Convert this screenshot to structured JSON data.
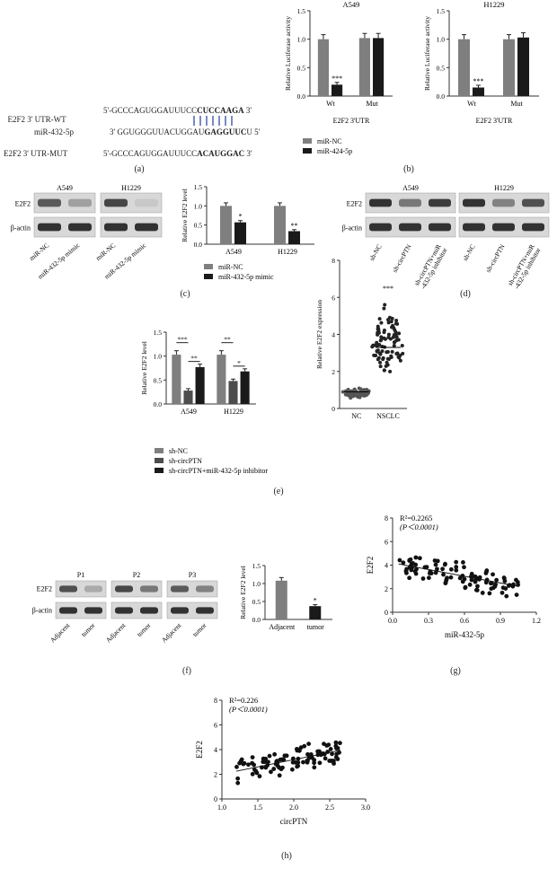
{
  "panel_labels": {
    "a": "(a)",
    "b": "(b)",
    "c": "(c)",
    "d": "(d)",
    "e": "(e)",
    "f": "(f)",
    "g": "(g)",
    "h": "(h)"
  },
  "panel_a": {
    "wt_label": "E2F2 3' UTR-WT",
    "wt_seq_prefix": "5'-GCCCAGUGGAUUUCC",
    "wt_seq_bold": "CUCCAAGA",
    "wt_seq_suffix": " 3'",
    "mir_label": "miR-432-5p",
    "mir_seq_prefix": "3' GGUGGGUUACUGGAU",
    "mir_seq_bold": "GAGGUUC",
    "mir_seq_suffix": "U 5'",
    "mut_label": "E2F2 3' UTR-MUT",
    "mut_seq_prefix": "5'-GCCCAGUGGAUUUCC",
    "mut_seq_bold": "ACAUGGAC",
    "mut_seq_suffix": " 3'"
  },
  "western_c": {
    "cells": [
      "A549",
      "H1229"
    ],
    "rows": [
      "E2F2",
      "β-actin"
    ],
    "lanes": [
      "miR-NC",
      "miR-432-5p mimic",
      "miR-NC",
      "miR-432-5p mimic"
    ]
  },
  "western_d": {
    "cells": [
      "A549",
      "H1229"
    ],
    "rows": [
      "E2F2",
      "β-actin"
    ],
    "lanes": [
      "sh-NC",
      "sh-circPTN",
      "sh-circPTN+miR\n-432-5p inhibitor",
      "sh-NC",
      "sh-circPTN",
      "sh-circPTN+miR\n-432-5p inhibitor"
    ]
  },
  "western_f": {
    "patients": [
      "P1",
      "P2",
      "P3"
    ],
    "rows": [
      "E2F2",
      "β-actin"
    ],
    "lanes": [
      "Adjacent",
      "tumor",
      "Adjacent",
      "tumor",
      "Adjacent",
      "tumor"
    ]
  },
  "chart_data": [
    {
      "id": "b1",
      "type": "bar",
      "title": "A549",
      "ylabel": "Relative Luciferase activity",
      "xlabel": "E2F2 3'UTR",
      "categories": [
        "Wt",
        "Mut"
      ],
      "ylim": [
        0,
        1.5
      ],
      "yticks": [
        "0.0",
        "0.5",
        "1.0",
        "1.5"
      ],
      "series": [
        {
          "name": "miR-NC",
          "color": "#7f7f7f",
          "values": [
            1.0,
            1.02
          ]
        },
        {
          "name": "miR-424-5p",
          "color": "#1a1a1a",
          "values": [
            0.2,
            1.02
          ]
        }
      ],
      "annotations": [
        {
          "category": "Wt",
          "series": 1,
          "text": "***"
        }
      ]
    },
    {
      "id": "b2",
      "type": "bar",
      "title": "H1229",
      "ylabel": "Relative Luciferase activity",
      "xlabel": "E2F2 3'UTR",
      "categories": [
        "Wt",
        "Mut"
      ],
      "ylim": [
        0,
        1.5
      ],
      "yticks": [
        "0.0",
        "0.5",
        "1.0",
        "1.5"
      ],
      "series": [
        {
          "name": "miR-NC",
          "color": "#7f7f7f",
          "values": [
            1.0,
            1.0
          ]
        },
        {
          "name": "miR-424-5p",
          "color": "#1a1a1a",
          "values": [
            0.15,
            1.03
          ]
        }
      ],
      "annotations": [
        {
          "category": "Wt",
          "series": 1,
          "text": "***"
        }
      ]
    },
    {
      "id": "c",
      "type": "bar",
      "title": "",
      "ylabel": "Relative E2F2 level",
      "xlabel": "",
      "categories": [
        "A549",
        "H1229"
      ],
      "ylim": [
        0,
        1.5
      ],
      "yticks": [
        "0.0",
        "0.5",
        "1.0",
        "1.5"
      ],
      "series": [
        {
          "name": "miR-NC",
          "color": "#7f7f7f",
          "values": [
            1.0,
            1.0
          ]
        },
        {
          "name": "miR-432-5p mimic",
          "color": "#1a1a1a",
          "values": [
            0.57,
            0.34
          ]
        }
      ],
      "annotations": [
        {
          "category": "A549",
          "series": 1,
          "text": "*"
        },
        {
          "category": "H1229",
          "series": 1,
          "text": "**"
        }
      ]
    },
    {
      "id": "e1",
      "type": "bar",
      "title": "",
      "ylabel": "Relative E2F2 level",
      "xlabel": "",
      "categories": [
        "A549",
        "H1229"
      ],
      "ylim": [
        0,
        1.5
      ],
      "yticks": [
        "0.0",
        "0.5",
        "1.0",
        "1.5"
      ],
      "series": [
        {
          "name": "sh-NC",
          "color": "#7f7f7f",
          "values": [
            1.03,
            1.03
          ]
        },
        {
          "name": "sh-circPTN",
          "color": "#4d4d4d",
          "values": [
            0.28,
            0.48
          ]
        },
        {
          "name": "sh-circPTN+miR-432-5p inhibitor",
          "color": "#1a1a1a",
          "values": [
            0.77,
            0.68
          ]
        }
      ],
      "brackets": [
        {
          "category": "A549",
          "from": 0,
          "to": 1,
          "text": "***"
        },
        {
          "category": "A549",
          "from": 1,
          "to": 2,
          "text": "**"
        },
        {
          "category": "H1229",
          "from": 0,
          "to": 1,
          "text": "**"
        },
        {
          "category": "H1229",
          "from": 1,
          "to": 2,
          "text": "*"
        }
      ]
    },
    {
      "id": "e2",
      "type": "scatter",
      "title": "",
      "ylabel": "Relative E2F2 expression",
      "xlabel": "",
      "categories": [
        "NC",
        "NSCLC"
      ],
      "ylim": [
        0,
        8
      ],
      "yticks": [
        "0",
        "2",
        "4",
        "6",
        "8"
      ],
      "groups": [
        {
          "name": "NC",
          "mean": 0.9,
          "min": 0.5,
          "max": 1.2
        },
        {
          "name": "NSCLC",
          "mean": 3.3,
          "min": 1.6,
          "max": 6.1
        }
      ],
      "annotations": [
        {
          "category": "NSCLC",
          "text": "***"
        }
      ]
    },
    {
      "id": "f",
      "type": "bar",
      "title": "",
      "ylabel": "Relative E2F2 level",
      "xlabel": "",
      "categories": [
        "Adjacent",
        "tumor"
      ],
      "ylim": [
        0,
        1.5
      ],
      "yticks": [
        "0.0",
        "0.5",
        "1.0",
        "1.5"
      ],
      "series": [
        {
          "name": "",
          "color": "#7f7f7f",
          "values": [
            1.08,
            0.37
          ]
        }
      ],
      "colors": [
        "#7f7f7f",
        "#1a1a1a"
      ],
      "annotations": [
        {
          "category": "tumor",
          "text": "*"
        }
      ]
    },
    {
      "id": "g",
      "type": "scatter",
      "title": "",
      "xlabel": "miR-432-5p",
      "ylabel": "E2F2",
      "xlim": [
        0,
        1.2
      ],
      "ylim": [
        0,
        8
      ],
      "xticks": [
        "0.0",
        "0.3",
        "0.6",
        "0.9",
        "1.2"
      ],
      "yticks": [
        "0",
        "2",
        "4",
        "6",
        "8"
      ],
      "stat_line1": "R²=0.2265",
      "stat_line2": "(P＜0.0001)",
      "fit": {
        "x0": 0.05,
        "y0": 4.1,
        "x1": 1.05,
        "y1": 2.2
      }
    },
    {
      "id": "h",
      "type": "scatter",
      "title": "",
      "xlabel": "circPTN",
      "ylabel": "E2F2",
      "xlim": [
        1.0,
        3.0
      ],
      "ylim": [
        0,
        8
      ],
      "xticks": [
        "1.0",
        "1.5",
        "2.0",
        "2.5",
        "3.0"
      ],
      "yticks": [
        "0",
        "2",
        "4",
        "6",
        "8"
      ],
      "stat_line1": "R²=0.226",
      "stat_line2": "(P＜0.0001)",
      "fit": {
        "x0": 1.2,
        "y0": 2.25,
        "x1": 2.65,
        "y1": 3.95
      }
    }
  ],
  "legend_b": [
    "miR-NC",
    "miR-424-5p"
  ],
  "legend_c": [
    "miR-NC",
    "miR-432-5p mimic"
  ],
  "legend_e": [
    "sh-NC",
    "sh-circPTN",
    "sh-circPTN+miR-432-5p inhibitor"
  ]
}
